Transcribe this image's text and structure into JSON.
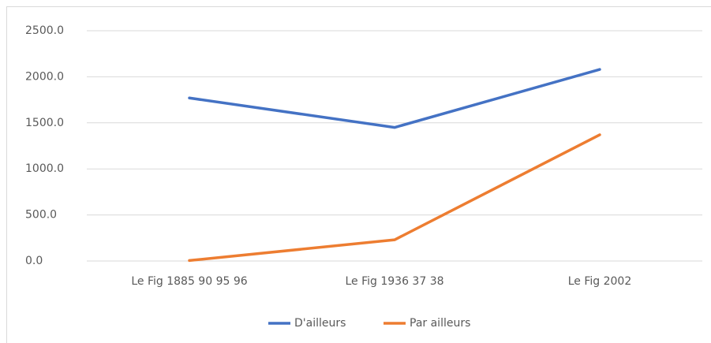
{
  "chart_data": {
    "type": "line",
    "categories": [
      "Le Fig 1885 90 95 96",
      "Le Fig 1936 37 38",
      "Le Fig 2002"
    ],
    "series": [
      {
        "name": "D'ailleurs",
        "color": "#4472c4",
        "values": [
          1770,
          1450,
          2080
        ]
      },
      {
        "name": "Par ailleurs",
        "color": "#ed7d31",
        "values": [
          5,
          230,
          1370
        ]
      }
    ],
    "ylim": [
      0,
      2500
    ],
    "yticks": [
      {
        "value": 0,
        "label": "0.0"
      },
      {
        "value": 500,
        "label": "500.0"
      },
      {
        "value": 1000,
        "label": "1000.0"
      },
      {
        "value": 1500,
        "label": "1500.0"
      },
      {
        "value": 2000,
        "label": "2000.0"
      },
      {
        "value": 2500,
        "label": "2500.0"
      }
    ],
    "grid": true,
    "legend": "bottom"
  }
}
